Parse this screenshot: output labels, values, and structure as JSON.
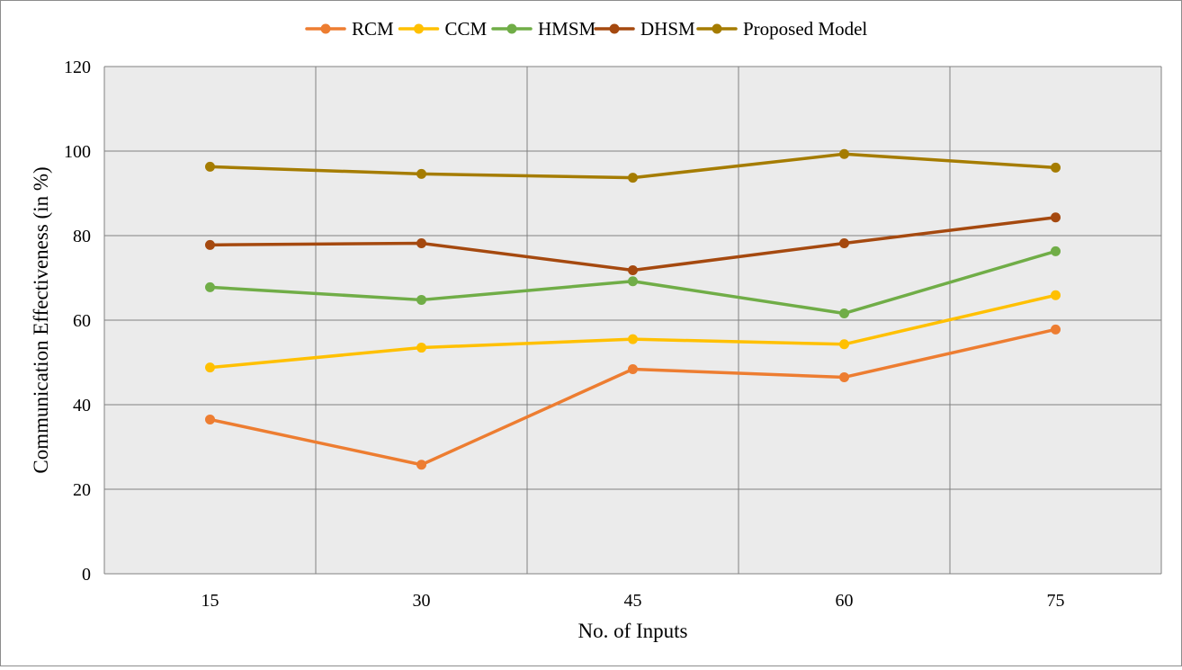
{
  "chart_data": {
    "type": "line",
    "categories": [
      "15",
      "30",
      "45",
      "60",
      "75"
    ],
    "xlabel": "No. of Inputs",
    "ylabel": "Communication  Effectiveness  (in %)",
    "ylim": [
      0,
      120
    ],
    "yticks": [
      "0",
      "20",
      "40",
      "60",
      "80",
      "100",
      "120"
    ],
    "grid": true,
    "legend_position": "top",
    "series": [
      {
        "name": "RCM",
        "color": "#ED7D31",
        "values": [
          36.5,
          25.8,
          48.4,
          46.5,
          57.8
        ]
      },
      {
        "name": "CCM",
        "color": "#FFC000",
        "values": [
          48.8,
          53.5,
          55.5,
          54.3,
          65.9
        ]
      },
      {
        "name": "HMSM",
        "color": "#70AD47",
        "values": [
          67.8,
          64.8,
          69.2,
          61.6,
          76.3
        ]
      },
      {
        "name": "DHSM",
        "color": "#A5490F",
        "values": [
          77.8,
          78.2,
          71.8,
          78.2,
          84.3
        ]
      },
      {
        "name": "Proposed Model",
        "color": "#A57C00",
        "values": [
          96.3,
          94.6,
          93.7,
          99.3,
          96.1
        ]
      }
    ],
    "plot_background": "#EBEBEB",
    "grid_color": "#808080"
  }
}
